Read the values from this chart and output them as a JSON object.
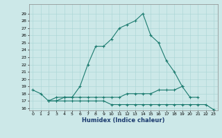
{
  "xlabel": "Humidex (Indice chaleur)",
  "x": [
    0,
    1,
    2,
    3,
    4,
    5,
    6,
    7,
    8,
    9,
    10,
    11,
    12,
    13,
    14,
    15,
    16,
    17,
    18,
    19,
    20,
    21,
    22,
    23
  ],
  "line1": [
    18.5,
    18.0,
    17.0,
    17.5,
    17.5,
    17.5,
    19.0,
    22.0,
    24.5,
    24.5,
    25.5,
    27.0,
    27.5,
    28.0,
    29.0,
    26.0,
    25.0,
    22.5,
    21.0,
    19.0,
    null,
    null,
    null,
    null
  ],
  "line2": [
    null,
    null,
    17.0,
    17.0,
    17.5,
    17.5,
    17.5,
    17.5,
    17.5,
    17.5,
    17.5,
    17.5,
    18.0,
    18.0,
    18.0,
    18.0,
    18.5,
    18.5,
    18.5,
    19.0,
    17.5,
    17.5,
    null,
    null
  ],
  "line3": [
    null,
    null,
    17.0,
    17.0,
    17.0,
    17.0,
    17.0,
    17.0,
    17.0,
    17.0,
    16.5,
    16.5,
    16.5,
    16.5,
    16.5,
    16.5,
    16.5,
    16.5,
    16.5,
    16.5,
    16.5,
    16.5,
    16.5,
    15.8
  ],
  "ylim_min": 16,
  "ylim_max": 30,
  "ytick_min": 16,
  "ytick_max": 29,
  "line_color": "#1a7a6e",
  "bg_color": "#cce8e8",
  "grid_color": "#a8d4d4"
}
